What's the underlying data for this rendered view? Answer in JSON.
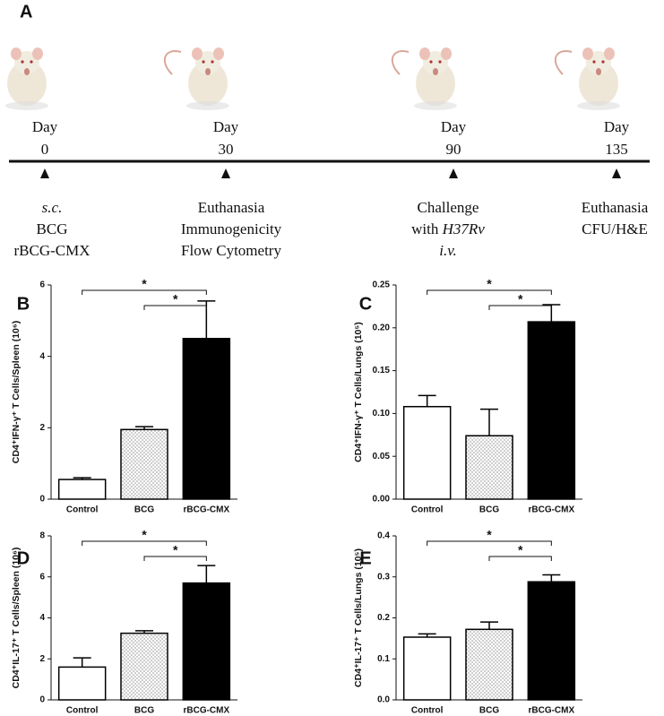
{
  "panel_a": {
    "label": "A",
    "events": [
      {
        "day_label": "Day",
        "day": "0",
        "lines": [
          [
            {
              "text": "s.c.",
              "italic": true
            }
          ],
          [
            {
              "text": "BCG"
            }
          ],
          [
            {
              "text": "rBCG-CMX"
            }
          ]
        ]
      },
      {
        "day_label": "Day",
        "day": "30",
        "lines": [
          [
            {
              "text": "Euthanasia"
            }
          ],
          [
            {
              "text": "Immunogenicity"
            }
          ],
          [
            {
              "text": "Flow Cytometry"
            }
          ]
        ]
      },
      {
        "day_label": "Day",
        "day": "90",
        "lines": [
          [
            {
              "text": "Challenge"
            }
          ],
          [
            {
              "text": "with "
            },
            {
              "text": "H37Rv",
              "italic": true
            }
          ],
          [
            {
              "text": "i.v.",
              "italic": true
            }
          ]
        ]
      },
      {
        "day_label": "Day",
        "day": "135",
        "lines": [
          [
            {
              "text": "Euthanasia"
            }
          ],
          [
            {
              "text": "CFU/H&E"
            }
          ]
        ]
      }
    ]
  },
  "chart_data": [
    {
      "type": "bar",
      "panel": "B",
      "y_label": "CD4⁺IFN-γ⁺ T Cells/Spleen (10⁶)",
      "categories": [
        "Control",
        "BCG",
        "rBCG-CMX"
      ],
      "values": [
        0.55,
        1.95,
        4.5
      ],
      "errors": [
        0.05,
        0.08,
        1.05
      ],
      "bar_styles": [
        "white",
        "dotted",
        "black"
      ],
      "ylim": [
        0,
        6
      ],
      "yticks": [
        0,
        2,
        4,
        6
      ],
      "significance": [
        {
          "from": 0,
          "to": 2,
          "label": "*"
        },
        {
          "from": 1,
          "to": 2,
          "label": "*"
        }
      ]
    },
    {
      "type": "bar",
      "panel": "C",
      "y_label": "CD4⁺IFN-γ⁺ T Cells/Lungs (10⁵)",
      "categories": [
        "Control",
        "BCG",
        "rBCG-CMX"
      ],
      "values": [
        0.108,
        0.074,
        0.207
      ],
      "errors": [
        0.013,
        0.031,
        0.02
      ],
      "bar_styles": [
        "white",
        "dotted",
        "black"
      ],
      "ylim": [
        0,
        0.25
      ],
      "yticks": [
        {
          "value": 0,
          "label": "0.00"
        },
        {
          "value": 0.05,
          "label": "0.05"
        },
        {
          "value": 0.1,
          "label": "0.10"
        },
        {
          "value": 0.15,
          "label": "0.15"
        },
        {
          "value": 0.2,
          "label": "0.20"
        },
        {
          "value": 0.25,
          "label": "0.25"
        }
      ],
      "significance": [
        {
          "from": 0,
          "to": 2,
          "label": "*"
        },
        {
          "from": 1,
          "to": 2,
          "label": "*"
        }
      ]
    },
    {
      "type": "bar",
      "panel": "D",
      "y_label": "CD4⁺IL-17⁺ T Cells/Spleen (10⁶)",
      "categories": [
        "Control",
        "BCG",
        "rBCG-CMX"
      ],
      "values": [
        1.6,
        3.25,
        5.7
      ],
      "errors": [
        0.45,
        0.12,
        0.85
      ],
      "bar_styles": [
        "white",
        "dotted",
        "black"
      ],
      "ylim": [
        0,
        8
      ],
      "yticks": [
        0,
        2,
        4,
        6,
        8
      ],
      "significance": [
        {
          "from": 0,
          "to": 2,
          "label": "*"
        },
        {
          "from": 1,
          "to": 2,
          "label": "*"
        }
      ]
    },
    {
      "type": "bar",
      "panel": "E",
      "y_label": "CD4⁺IL-17⁺ T Cells/Lungs (10⁵)",
      "categories": [
        "Control",
        "BCG",
        "rBCG-CMX"
      ],
      "values": [
        0.153,
        0.172,
        0.288
      ],
      "errors": [
        0.008,
        0.018,
        0.017
      ],
      "bar_styles": [
        "white",
        "dotted",
        "black"
      ],
      "ylim": [
        0,
        0.4
      ],
      "yticks": [
        {
          "value": 0,
          "label": "0.0"
        },
        {
          "value": 0.1,
          "label": "0.1"
        },
        {
          "value": 0.2,
          "label": "0.2"
        },
        {
          "value": 0.3,
          "label": "0.3"
        },
        {
          "value": 0.4,
          "label": "0.4"
        }
      ],
      "significance": [
        {
          "from": 0,
          "to": 2,
          "label": "*"
        },
        {
          "from": 1,
          "to": 2,
          "label": "*"
        }
      ]
    }
  ]
}
